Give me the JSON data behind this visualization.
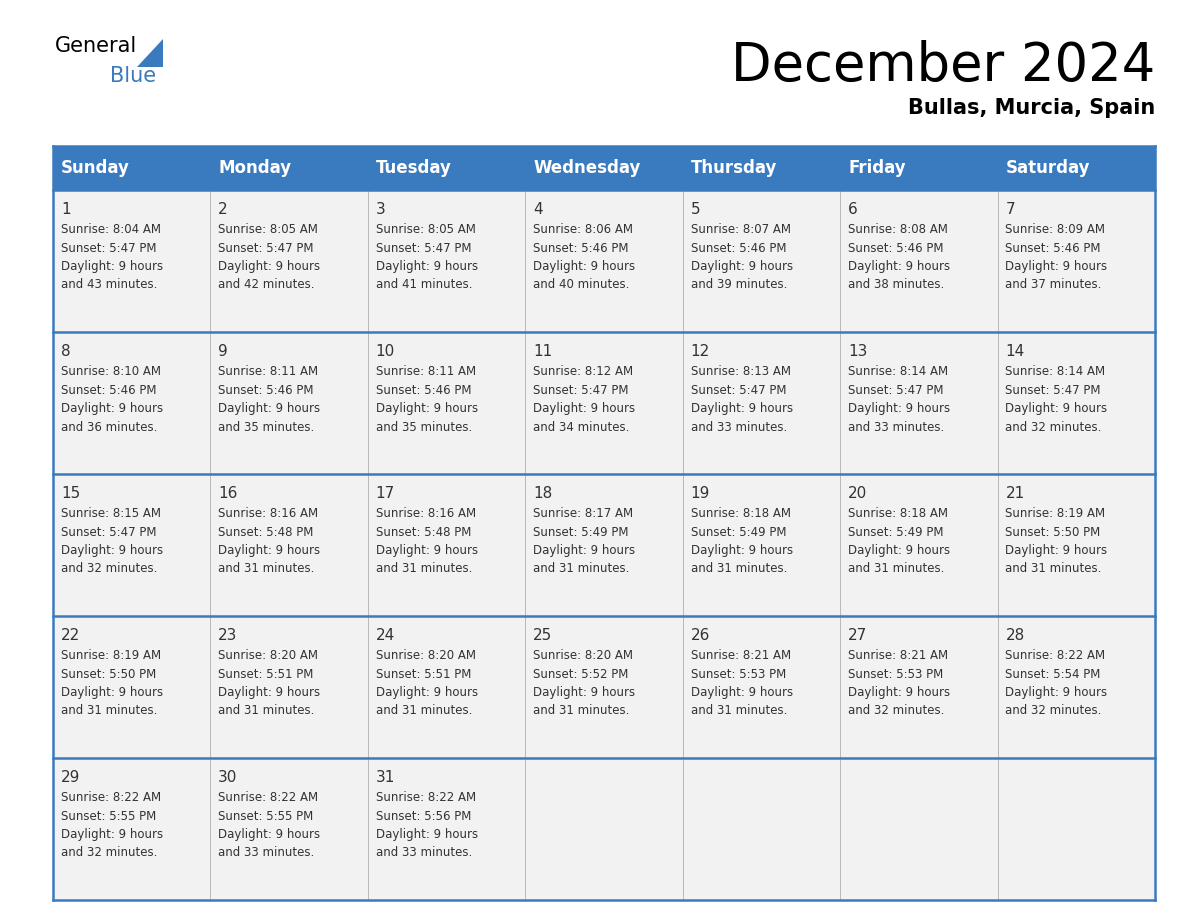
{
  "title": "December 2024",
  "subtitle": "Bullas, Murcia, Spain",
  "header_bg_color": "#3a7abf",
  "header_text_color": "#ffffff",
  "cell_bg_color": "#f2f2f2",
  "border_color": "#3a7abf",
  "text_color": "#333333",
  "days_of_week": [
    "Sunday",
    "Monday",
    "Tuesday",
    "Wednesday",
    "Thursday",
    "Friday",
    "Saturday"
  ],
  "weeks": [
    [
      {
        "day": 1,
        "sunrise": "8:04 AM",
        "sunset": "5:47 PM",
        "daylight_h": "9 hours",
        "daylight_m": "43 minutes."
      },
      {
        "day": 2,
        "sunrise": "8:05 AM",
        "sunset": "5:47 PM",
        "daylight_h": "9 hours",
        "daylight_m": "42 minutes."
      },
      {
        "day": 3,
        "sunrise": "8:05 AM",
        "sunset": "5:47 PM",
        "daylight_h": "9 hours",
        "daylight_m": "41 minutes."
      },
      {
        "day": 4,
        "sunrise": "8:06 AM",
        "sunset": "5:46 PM",
        "daylight_h": "9 hours",
        "daylight_m": "40 minutes."
      },
      {
        "day": 5,
        "sunrise": "8:07 AM",
        "sunset": "5:46 PM",
        "daylight_h": "9 hours",
        "daylight_m": "39 minutes."
      },
      {
        "day": 6,
        "sunrise": "8:08 AM",
        "sunset": "5:46 PM",
        "daylight_h": "9 hours",
        "daylight_m": "38 minutes."
      },
      {
        "day": 7,
        "sunrise": "8:09 AM",
        "sunset": "5:46 PM",
        "daylight_h": "9 hours",
        "daylight_m": "37 minutes."
      }
    ],
    [
      {
        "day": 8,
        "sunrise": "8:10 AM",
        "sunset": "5:46 PM",
        "daylight_h": "9 hours",
        "daylight_m": "36 minutes."
      },
      {
        "day": 9,
        "sunrise": "8:11 AM",
        "sunset": "5:46 PM",
        "daylight_h": "9 hours",
        "daylight_m": "35 minutes."
      },
      {
        "day": 10,
        "sunrise": "8:11 AM",
        "sunset": "5:46 PM",
        "daylight_h": "9 hours",
        "daylight_m": "35 minutes."
      },
      {
        "day": 11,
        "sunrise": "8:12 AM",
        "sunset": "5:47 PM",
        "daylight_h": "9 hours",
        "daylight_m": "34 minutes."
      },
      {
        "day": 12,
        "sunrise": "8:13 AM",
        "sunset": "5:47 PM",
        "daylight_h": "9 hours",
        "daylight_m": "33 minutes."
      },
      {
        "day": 13,
        "sunrise": "8:14 AM",
        "sunset": "5:47 PM",
        "daylight_h": "9 hours",
        "daylight_m": "33 minutes."
      },
      {
        "day": 14,
        "sunrise": "8:14 AM",
        "sunset": "5:47 PM",
        "daylight_h": "9 hours",
        "daylight_m": "32 minutes."
      }
    ],
    [
      {
        "day": 15,
        "sunrise": "8:15 AM",
        "sunset": "5:47 PM",
        "daylight_h": "9 hours",
        "daylight_m": "32 minutes."
      },
      {
        "day": 16,
        "sunrise": "8:16 AM",
        "sunset": "5:48 PM",
        "daylight_h": "9 hours",
        "daylight_m": "31 minutes."
      },
      {
        "day": 17,
        "sunrise": "8:16 AM",
        "sunset": "5:48 PM",
        "daylight_h": "9 hours",
        "daylight_m": "31 minutes."
      },
      {
        "day": 18,
        "sunrise": "8:17 AM",
        "sunset": "5:49 PM",
        "daylight_h": "9 hours",
        "daylight_m": "31 minutes."
      },
      {
        "day": 19,
        "sunrise": "8:18 AM",
        "sunset": "5:49 PM",
        "daylight_h": "9 hours",
        "daylight_m": "31 minutes."
      },
      {
        "day": 20,
        "sunrise": "8:18 AM",
        "sunset": "5:49 PM",
        "daylight_h": "9 hours",
        "daylight_m": "31 minutes."
      },
      {
        "day": 21,
        "sunrise": "8:19 AM",
        "sunset": "5:50 PM",
        "daylight_h": "9 hours",
        "daylight_m": "31 minutes."
      }
    ],
    [
      {
        "day": 22,
        "sunrise": "8:19 AM",
        "sunset": "5:50 PM",
        "daylight_h": "9 hours",
        "daylight_m": "31 minutes."
      },
      {
        "day": 23,
        "sunrise": "8:20 AM",
        "sunset": "5:51 PM",
        "daylight_h": "9 hours",
        "daylight_m": "31 minutes."
      },
      {
        "day": 24,
        "sunrise": "8:20 AM",
        "sunset": "5:51 PM",
        "daylight_h": "9 hours",
        "daylight_m": "31 minutes."
      },
      {
        "day": 25,
        "sunrise": "8:20 AM",
        "sunset": "5:52 PM",
        "daylight_h": "9 hours",
        "daylight_m": "31 minutes."
      },
      {
        "day": 26,
        "sunrise": "8:21 AM",
        "sunset": "5:53 PM",
        "daylight_h": "9 hours",
        "daylight_m": "31 minutes."
      },
      {
        "day": 27,
        "sunrise": "8:21 AM",
        "sunset": "5:53 PM",
        "daylight_h": "9 hours",
        "daylight_m": "32 minutes."
      },
      {
        "day": 28,
        "sunrise": "8:22 AM",
        "sunset": "5:54 PM",
        "daylight_h": "9 hours",
        "daylight_m": "32 minutes."
      }
    ],
    [
      {
        "day": 29,
        "sunrise": "8:22 AM",
        "sunset": "5:55 PM",
        "daylight_h": "9 hours",
        "daylight_m": "32 minutes."
      },
      {
        "day": 30,
        "sunrise": "8:22 AM",
        "sunset": "5:55 PM",
        "daylight_h": "9 hours",
        "daylight_m": "33 minutes."
      },
      {
        "day": 31,
        "sunrise": "8:22 AM",
        "sunset": "5:56 PM",
        "daylight_h": "9 hours",
        "daylight_m": "33 minutes."
      },
      null,
      null,
      null,
      null
    ]
  ],
  "logo_triangle_color": "#3a7abf",
  "title_fontsize": 38,
  "subtitle_fontsize": 15,
  "header_fontsize": 12,
  "day_num_fontsize": 11,
  "cell_fontsize": 8.5
}
